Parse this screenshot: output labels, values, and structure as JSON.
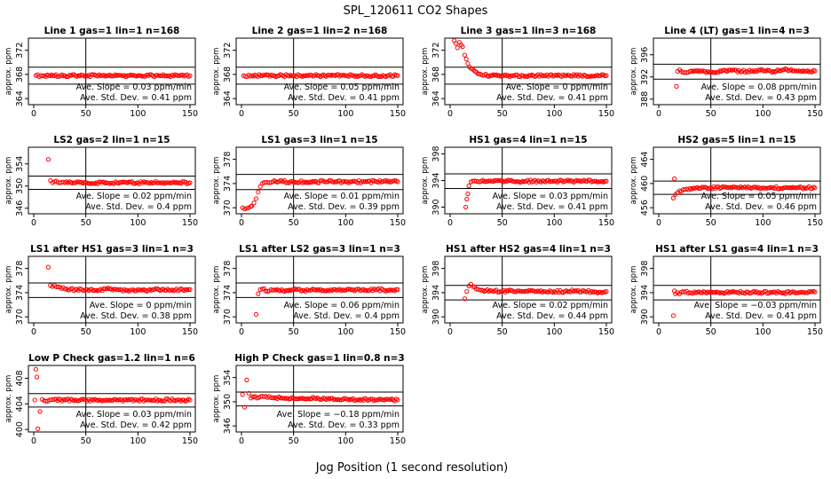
{
  "page": {
    "title": "SPL_120611  CO2 Shapes",
    "xlabel": "Jog Position (1 second resolution)"
  },
  "chart_data": [
    {
      "type": "scatter",
      "title": "Line 1 gas=1 lin=1 n=168",
      "ylabel": "approx. ppm",
      "xlim": [
        0,
        150
      ],
      "ylim": [
        363,
        374
      ],
      "xticks": [
        0,
        50,
        100,
        150
      ],
      "yticks": [
        364,
        368,
        372
      ],
      "hlines": [
        369.2,
        366.4
      ],
      "vline": 50,
      "slope": "Ave. Slope = 0.03  ppm/min",
      "std": "Ave. Std. Dev. = 0.41  ppm",
      "series": [
        {
          "x": [
            2,
            10,
            20,
            30,
            40,
            50,
            60,
            70,
            80,
            90,
            100,
            110,
            120,
            130,
            140,
            150
          ],
          "y": [
            367.8,
            367.8,
            367.8,
            367.8,
            367.8,
            367.8,
            367.8,
            367.8,
            367.8,
            367.8,
            367.8,
            367.8,
            367.8,
            367.8,
            367.8,
            367.8
          ]
        }
      ]
    },
    {
      "type": "scatter",
      "title": "Line 2 gas=1 lin=2 n=168",
      "ylabel": "approx. ppm",
      "xlim": [
        0,
        150
      ],
      "ylim": [
        363,
        374
      ],
      "xticks": [
        0,
        50,
        100,
        150
      ],
      "yticks": [
        364,
        368,
        372
      ],
      "hlines": [
        369.2,
        366.4
      ],
      "vline": 50,
      "slope": "Ave. Slope = 0.05  ppm/min",
      "std": "Ave. Std. Dev. = 0.41  ppm",
      "series": [
        {
          "x": [
            2,
            10,
            20,
            30,
            40,
            50,
            60,
            70,
            80,
            90,
            100,
            110,
            120,
            130,
            140,
            150
          ],
          "y": [
            367.8,
            367.8,
            367.8,
            367.8,
            367.8,
            367.8,
            367.8,
            367.8,
            367.8,
            367.8,
            367.8,
            367.8,
            367.8,
            367.8,
            367.8,
            367.8
          ]
        }
      ]
    },
    {
      "type": "scatter",
      "title": "Line 3 gas=1 lin=3 n=168",
      "ylabel": "approx. ppm",
      "xlim": [
        0,
        150
      ],
      "ylim": [
        363,
        374
      ],
      "xticks": [
        0,
        50,
        100,
        150
      ],
      "yticks": [
        364,
        368,
        372
      ],
      "hlines": [
        369.2,
        366.4
      ],
      "vline": 50,
      "slope": "Ave. Slope = 0  ppm/min",
      "std": "Ave. Std. Dev. = 0.41  ppm",
      "series": [
        {
          "x": [
            4,
            7,
            9,
            12,
            14,
            17,
            20,
            24,
            28,
            33,
            40,
            50,
            60,
            70,
            80,
            90,
            100,
            110,
            120,
            130,
            140,
            150
          ],
          "y": [
            373.6,
            372.4,
            373.3,
            372.6,
            371.2,
            369.8,
            369.0,
            368.5,
            368.1,
            367.9,
            367.8,
            367.8,
            367.8,
            367.8,
            367.8,
            367.8,
            367.8,
            367.8,
            367.8,
            367.8,
            367.8,
            367.8
          ]
        }
      ]
    },
    {
      "type": "scatter",
      "title": "Line 4 (LT) gas=1 lin=4 n=3",
      "ylabel": "approx. ppm",
      "xlim": [
        0,
        150
      ],
      "ylim": [
        387,
        399
      ],
      "xticks": [
        0,
        50,
        100,
        150
      ],
      "yticks": [
        388,
        392,
        396
      ],
      "hlines": [
        394.3,
        391.6
      ],
      "vline": 50,
      "slope": "Ave. Slope = 0.08  ppm/min",
      "std": "Ave. Std. Dev. = 0.43  ppm",
      "series": [
        {
          "x": [
            17,
            18,
            20,
            25,
            30,
            40,
            50,
            60,
            70,
            80,
            90,
            100,
            110,
            120,
            130,
            140,
            150
          ],
          "y": [
            390.3,
            393.0,
            393.3,
            392.8,
            393.0,
            393.1,
            392.9,
            393.0,
            393.2,
            393.0,
            393.1,
            393.2,
            393.0,
            393.3,
            393.1,
            393.0,
            393.1
          ]
        }
      ]
    },
    {
      "type": "scatter",
      "title": "LS2 gas=2 lin=1 n=15",
      "ylabel": "approx. ppm",
      "xlim": [
        0,
        150
      ],
      "ylim": [
        345,
        357
      ],
      "xticks": [
        0,
        50,
        100,
        150
      ],
      "yticks": [
        346,
        350,
        354
      ],
      "hlines": [
        351.8,
        349.4
      ],
      "vline": 50,
      "slope": "Ave. Slope = 0.02  ppm/min",
      "std": "Ave. Std. Dev. = 0.4  ppm",
      "series": [
        {
          "x": [
            14,
            16,
            18,
            20,
            25,
            30,
            40,
            50,
            60,
            70,
            80,
            90,
            100,
            110,
            120,
            130,
            140,
            150
          ],
          "y": [
            354.8,
            351.0,
            350.6,
            350.8,
            350.6,
            350.6,
            350.6,
            350.6,
            350.6,
            350.6,
            350.6,
            350.6,
            350.6,
            350.6,
            350.6,
            350.6,
            350.6,
            350.6
          ]
        }
      ]
    },
    {
      "type": "scatter",
      "title": "LS1 gas=3 lin=1 n=15",
      "ylabel": "approx. ppm",
      "xlim": [
        0,
        150
      ],
      "ylim": [
        369,
        380
      ],
      "xticks": [
        0,
        50,
        100,
        150
      ],
      "yticks": [
        370,
        374,
        378
      ],
      "hlines": [
        375.5,
        373.0
      ],
      "vline": 50,
      "slope": "Ave. Slope = 0.01  ppm/min",
      "std": "Ave. Std. Dev. = 0.39  ppm",
      "series": [
        {
          "x": [
            1,
            3,
            5,
            7,
            9,
            10,
            12,
            14,
            16,
            18,
            20,
            25,
            30,
            40,
            50,
            60,
            70,
            80,
            90,
            100,
            110,
            120,
            130,
            140,
            150
          ],
          "y": [
            370.0,
            369.8,
            369.9,
            370.0,
            370.2,
            370.3,
            370.8,
            371.5,
            372.6,
            373.5,
            374.0,
            374.2,
            374.3,
            374.3,
            374.3,
            374.3,
            374.3,
            374.3,
            374.3,
            374.3,
            374.3,
            374.3,
            374.3,
            374.3,
            374.3
          ]
        }
      ]
    },
    {
      "type": "scatter",
      "title": "HS1 gas=4 lin=1 n=15",
      "ylabel": "approx. ppm",
      "xlim": [
        0,
        150
      ],
      "ylim": [
        389,
        399
      ],
      "xticks": [
        0,
        50,
        100,
        150
      ],
      "yticks": [
        390,
        394,
        398
      ],
      "hlines": [
        395.0,
        392.8
      ],
      "vline": 50,
      "slope": "Ave. Slope = 0.03  ppm/min",
      "std": "Ave. Std. Dev. = 0.41  ppm",
      "series": [
        {
          "x": [
            15,
            16,
            17,
            18,
            20,
            25,
            30,
            40,
            50,
            60,
            70,
            80,
            90,
            100,
            110,
            120,
            130,
            140,
            150
          ],
          "y": [
            390.0,
            391.2,
            392.0,
            393.2,
            393.8,
            393.9,
            393.9,
            393.9,
            393.9,
            393.9,
            393.9,
            393.9,
            393.9,
            393.9,
            393.9,
            393.9,
            393.9,
            393.9,
            393.9
          ]
        }
      ]
    },
    {
      "type": "scatter",
      "title": "HS2 gas=5 lin=1 n=15",
      "ylabel": "approx. ppm",
      "xlim": [
        0,
        150
      ],
      "ylim": [
        455,
        466
      ],
      "xticks": [
        0,
        50,
        100,
        150
      ],
      "yticks": [
        456,
        460,
        464
      ],
      "hlines": [
        460.4,
        458.2
      ],
      "vline": 50,
      "slope": "Ave. Slope = 0.05  ppm/min",
      "std": "Ave. Std. Dev. = 0.46  ppm",
      "series": [
        {
          "x": [
            14,
            15,
            16,
            18,
            20,
            25,
            30,
            40,
            50,
            60,
            70,
            80,
            90,
            100,
            110,
            120,
            130,
            140,
            150
          ],
          "y": [
            457.6,
            460.8,
            458.2,
            458.5,
            458.8,
            459.0,
            459.2,
            459.2,
            459.3,
            459.3,
            459.3,
            459.3,
            459.3,
            459.3,
            459.3,
            459.3,
            459.3,
            459.3,
            459.3
          ]
        }
      ]
    },
    {
      "type": "scatter",
      "title": "LS1 after HS1 gas=3 lin=1 n=3",
      "ylabel": "approx. ppm",
      "xlim": [
        0,
        150
      ],
      "ylim": [
        369,
        380
      ],
      "xticks": [
        0,
        50,
        100,
        150
      ],
      "yticks": [
        370,
        374,
        378
      ],
      "hlines": [
        375.6,
        373.2
      ],
      "vline": 50,
      "slope": "Ave. Slope = 0  ppm/min",
      "std": "Ave. Std. Dev. = 0.38  ppm",
      "series": [
        {
          "x": [
            14,
            16,
            18,
            20,
            25,
            30,
            40,
            50,
            60,
            70,
            80,
            90,
            100,
            110,
            120,
            130,
            140,
            150
          ],
          "y": [
            378.2,
            375.2,
            375.0,
            375.2,
            374.9,
            374.6,
            374.5,
            374.5,
            374.4,
            374.6,
            374.5,
            374.4,
            374.5,
            374.4,
            374.5,
            374.4,
            374.5,
            374.5
          ]
        }
      ]
    },
    {
      "type": "scatter",
      "title": "LS1 after LS2 gas=3 lin=1 n=3",
      "ylabel": "approx. ppm",
      "xlim": [
        0,
        150
      ],
      "ylim": [
        369,
        380
      ],
      "xticks": [
        0,
        50,
        100,
        150
      ],
      "yticks": [
        370,
        374,
        378
      ],
      "hlines": [
        375.6,
        373.2
      ],
      "vline": 50,
      "slope": "Ave. Slope = 0.06  ppm/min",
      "std": "Ave. Std. Dev. = 0.4  ppm",
      "series": [
        {
          "x": [
            14,
            16,
            18,
            20,
            25,
            30,
            40,
            50,
            60,
            70,
            80,
            90,
            100,
            110,
            120,
            130,
            140,
            150
          ],
          "y": [
            370.4,
            373.8,
            374.5,
            374.6,
            374.2,
            374.4,
            374.3,
            374.5,
            374.4,
            374.5,
            374.3,
            374.5,
            374.4,
            374.5,
            374.4,
            374.5,
            374.4,
            374.5
          ]
        }
      ]
    },
    {
      "type": "scatter",
      "title": "HS1 after HS2 gas=4 lin=1 n=3",
      "ylabel": "approx. ppm",
      "xlim": [
        0,
        150
      ],
      "ylim": [
        389,
        400
      ],
      "xticks": [
        0,
        50,
        100,
        150
      ],
      "yticks": [
        390,
        394,
        398
      ],
      "hlines": [
        395.2,
        392.8
      ],
      "vline": 50,
      "slope": "Ave. Slope = 0.02  ppm/min",
      "std": "Ave. Std. Dev. = 0.44  ppm",
      "series": [
        {
          "x": [
            14,
            16,
            18,
            20,
            22,
            25,
            30,
            40,
            50,
            60,
            70,
            80,
            90,
            100,
            110,
            120,
            130,
            140,
            150
          ],
          "y": [
            393.0,
            394.2,
            395.1,
            395.4,
            395.0,
            394.6,
            394.4,
            394.3,
            394.2,
            394.3,
            394.2,
            394.3,
            394.2,
            394.2,
            394.2,
            394.3,
            394.2,
            394.1,
            394.2
          ]
        }
      ]
    },
    {
      "type": "scatter",
      "title": "HS1 after LS1 gas=4 lin=1 n=3",
      "ylabel": "approx. ppm",
      "xlim": [
        0,
        150
      ],
      "ylim": [
        389,
        400
      ],
      "xticks": [
        0,
        50,
        100,
        150
      ],
      "yticks": [
        390,
        394,
        398
      ],
      "hlines": [
        395.2,
        392.8
      ],
      "vline": 50,
      "slope": "Ave. Slope = −0.03  ppm/min",
      "std": "Ave. Std. Dev. = 0.41  ppm",
      "series": [
        {
          "x": [
            14,
            15,
            16,
            18,
            20,
            25,
            30,
            40,
            50,
            60,
            70,
            80,
            90,
            100,
            110,
            120,
            130,
            140,
            150
          ],
          "y": [
            390.2,
            394.3,
            393.8,
            394.0,
            393.8,
            394.1,
            394.0,
            394.0,
            394.1,
            394.0,
            394.1,
            394.0,
            394.1,
            394.0,
            394.1,
            394.0,
            394.1,
            394.0,
            394.1
          ]
        }
      ]
    },
    {
      "type": "scatter",
      "title": "Low P Check gas=1.2 lin=1 n=6",
      "ylabel": "approx. ppm",
      "xlim": [
        0,
        150
      ],
      "ylim": [
        399.6,
        410
      ],
      "xticks": [
        0,
        50,
        100,
        150
      ],
      "yticks": [
        400,
        404,
        408
      ],
      "hlines": [
        405.6,
        403.5
      ],
      "vline": 50,
      "slope": "Ave. Slope = 0.03  ppm/min",
      "std": "Ave. Std. Dev. = 0.42  ppm",
      "series": [
        {
          "x": [
            1,
            2,
            3,
            4,
            6,
            8,
            10,
            15,
            20,
            30,
            40,
            50,
            60,
            70,
            80,
            90,
            100,
            110,
            120,
            130,
            140,
            150
          ],
          "y": [
            404.6,
            409.4,
            408.2,
            400.1,
            402.8,
            404.7,
            404.5,
            404.6,
            404.7,
            404.6,
            404.6,
            404.6,
            404.6,
            404.6,
            404.6,
            404.6,
            404.6,
            404.6,
            404.6,
            404.6,
            404.6,
            404.6
          ]
        }
      ]
    },
    {
      "type": "scatter",
      "title": "High P Check gas=1 lin=0.8 n=3",
      "ylabel": "approx. ppm",
      "xlim": [
        0,
        150
      ],
      "ylim": [
        345,
        356
      ],
      "xticks": [
        0,
        50,
        100,
        150
      ],
      "yticks": [
        346,
        350,
        354
      ],
      "hlines": [
        351.6,
        349.3
      ],
      "vline": 50,
      "slope": "Ave. Slope = −0.18  ppm/min",
      "std": "Ave. Std. Dev. = 0.33  ppm",
      "series": [
        {
          "x": [
            1,
            3,
            5,
            7,
            9,
            12,
            15,
            20,
            25,
            30,
            40,
            50,
            60,
            70,
            80,
            90,
            100,
            110,
            120,
            130,
            140,
            150
          ],
          "y": [
            351.2,
            349.1,
            353.6,
            351.4,
            350.6,
            350.8,
            350.6,
            350.9,
            350.7,
            350.7,
            350.6,
            350.6,
            350.5,
            350.6,
            350.5,
            350.4,
            350.5,
            350.3,
            350.4,
            350.3,
            350.4,
            350.3
          ]
        }
      ]
    }
  ]
}
